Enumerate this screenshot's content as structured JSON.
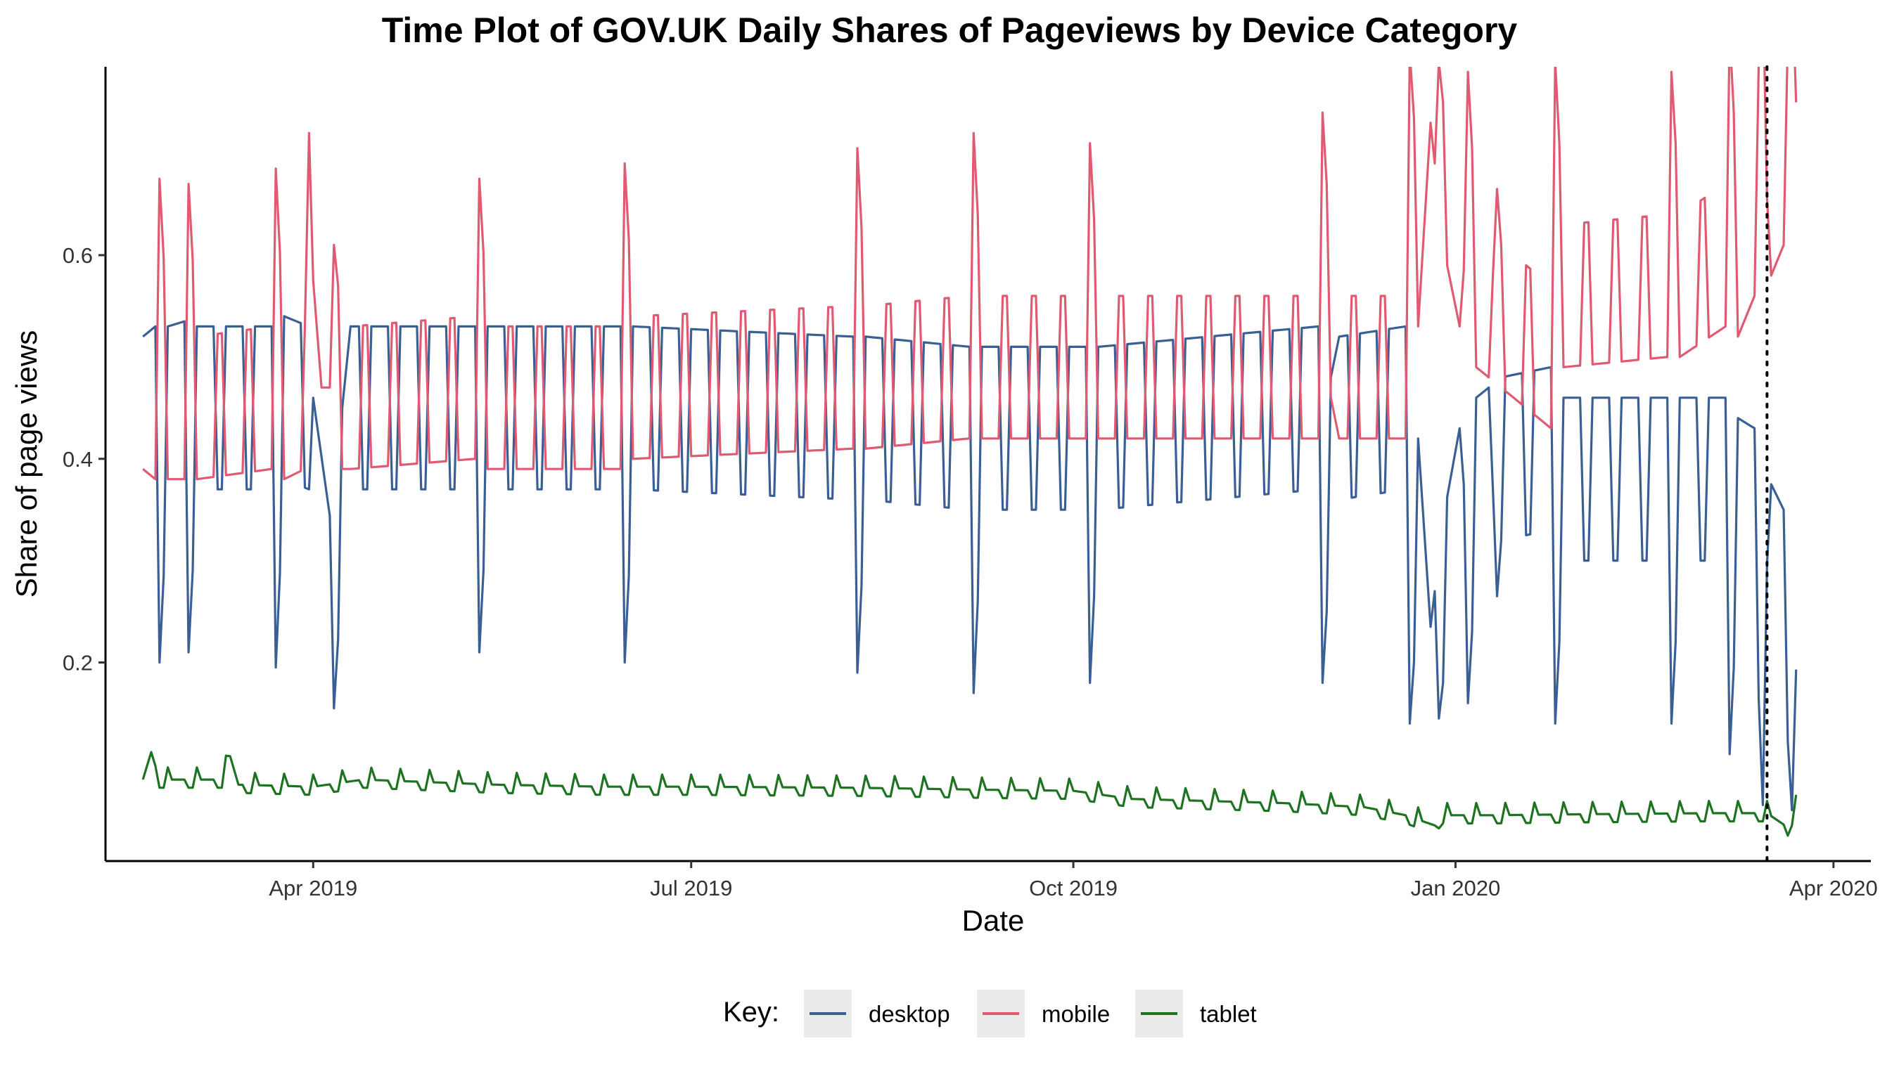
{
  "chart_data": {
    "type": "line",
    "title": "Time Plot of GOV.UK Daily Shares of Pageviews by Device Category",
    "xlabel": "Date",
    "ylabel": "Share of page views",
    "x_ticks": [
      {
        "date": "2019-04-01",
        "label": "Apr 2019"
      },
      {
        "date": "2019-07-01",
        "label": "Jul 2019"
      },
      {
        "date": "2019-10-01",
        "label": "Oct 2019"
      },
      {
        "date": "2020-01-01",
        "label": "Jan 2020"
      },
      {
        "date": "2020-04-01",
        "label": "Apr 2020"
      }
    ],
    "y_ticks": [
      0.2,
      0.4,
      0.6
    ],
    "xlim": [
      "2019-02-10",
      "2020-04-10"
    ],
    "ylim": [
      0.005,
      0.785
    ],
    "x_start": "2019-02-19",
    "x_end": "2020-03-23",
    "vline": {
      "date": "2020-03-16",
      "style": "dotted"
    },
    "grid": false,
    "legend": {
      "title": "Key:",
      "position": "bottom"
    },
    "series": [
      {
        "name": "desktop",
        "color": "#3A5F94",
        "keypoints": [
          [
            "2019-02-19",
            0.52
          ],
          [
            "2019-02-22",
            0.53
          ],
          [
            "2019-02-23",
            0.36
          ],
          [
            "2019-02-25",
            0.53
          ],
          [
            "2019-03-01",
            0.535
          ],
          [
            "2019-03-02",
            0.37
          ],
          [
            "2019-03-04",
            0.53
          ],
          [
            "2019-03-22",
            0.53
          ],
          [
            "2019-03-23",
            0.355
          ],
          [
            "2019-03-25",
            0.54
          ],
          [
            "2019-03-31",
            0.53
          ],
          [
            "2019-04-01",
            0.46
          ],
          [
            "2019-04-06",
            0.315
          ],
          [
            "2019-04-08",
            0.45
          ],
          [
            "2019-04-10",
            0.53
          ],
          [
            "2019-05-10",
            0.53
          ],
          [
            "2019-05-11",
            0.37
          ],
          [
            "2019-05-13",
            0.53
          ],
          [
            "2019-06-14",
            0.53
          ],
          [
            "2019-06-15",
            0.36
          ],
          [
            "2019-06-17",
            0.53
          ],
          [
            "2019-08-09",
            0.52
          ],
          [
            "2019-08-10",
            0.35
          ],
          [
            "2019-08-12",
            0.52
          ],
          [
            "2019-09-06",
            0.51
          ],
          [
            "2019-09-07",
            0.33
          ],
          [
            "2019-09-09",
            0.51
          ],
          [
            "2019-10-04",
            0.51
          ],
          [
            "2019-10-05",
            0.34
          ],
          [
            "2019-10-07",
            0.51
          ],
          [
            "2019-11-29",
            0.53
          ],
          [
            "2019-11-30",
            0.34
          ],
          [
            "2019-12-02",
            0.48
          ],
          [
            "2019-12-04",
            0.52
          ],
          [
            "2019-12-20",
            0.53
          ],
          [
            "2019-12-21",
            0.3
          ],
          [
            "2019-12-23",
            0.42
          ],
          [
            "2019-12-26",
            0.235
          ],
          [
            "2019-12-29",
            0.34
          ],
          [
            "2020-01-02",
            0.43
          ],
          [
            "2020-01-04",
            0.32
          ],
          [
            "2020-01-06",
            0.46
          ],
          [
            "2020-01-09",
            0.47
          ],
          [
            "2020-01-10",
            0.37
          ],
          [
            "2020-01-12",
            0.48
          ],
          [
            "2020-01-24",
            0.49
          ],
          [
            "2020-01-25",
            0.3
          ],
          [
            "2020-01-27",
            0.46
          ],
          [
            "2020-02-21",
            0.46
          ],
          [
            "2020-02-22",
            0.3
          ],
          [
            "2020-02-24",
            0.46
          ],
          [
            "2020-03-06",
            0.46
          ],
          [
            "2020-03-07",
            0.27
          ],
          [
            "2020-03-09",
            0.44
          ],
          [
            "2020-03-13",
            0.43
          ],
          [
            "2020-03-15",
            0.22
          ],
          [
            "2020-03-17",
            0.375
          ],
          [
            "2020-03-20",
            0.35
          ],
          [
            "2020-03-22",
            0.215
          ],
          [
            "2020-03-23",
            0.193
          ]
        ]
      },
      {
        "name": "mobile",
        "color": "#E05A72",
        "keypoints": [
          [
            "2019-02-19",
            0.39
          ],
          [
            "2019-02-22",
            0.38
          ],
          [
            "2019-02-23",
            0.535
          ],
          [
            "2019-02-25",
            0.38
          ],
          [
            "2019-03-01",
            0.38
          ],
          [
            "2019-03-02",
            0.53
          ],
          [
            "2019-03-04",
            0.38
          ],
          [
            "2019-03-22",
            0.39
          ],
          [
            "2019-03-23",
            0.545
          ],
          [
            "2019-03-25",
            0.38
          ],
          [
            "2019-03-30",
            0.39
          ],
          [
            "2019-03-31",
            0.58
          ],
          [
            "2019-04-01",
            0.575
          ],
          [
            "2019-04-03",
            0.47
          ],
          [
            "2019-04-06",
            0.47
          ],
          [
            "2019-04-08",
            0.39
          ],
          [
            "2019-04-10",
            0.39
          ],
          [
            "2019-05-10",
            0.4
          ],
          [
            "2019-05-11",
            0.535
          ],
          [
            "2019-05-13",
            0.39
          ],
          [
            "2019-06-14",
            0.39
          ],
          [
            "2019-06-15",
            0.55
          ],
          [
            "2019-06-17",
            0.4
          ],
          [
            "2019-08-09",
            0.41
          ],
          [
            "2019-08-10",
            0.565
          ],
          [
            "2019-08-12",
            0.41
          ],
          [
            "2019-09-06",
            0.42
          ],
          [
            "2019-09-07",
            0.58
          ],
          [
            "2019-09-09",
            0.42
          ],
          [
            "2019-10-04",
            0.42
          ],
          [
            "2019-10-05",
            0.57
          ],
          [
            "2019-10-07",
            0.42
          ],
          [
            "2019-11-29",
            0.42
          ],
          [
            "2019-11-30",
            0.6
          ],
          [
            "2019-12-02",
            0.46
          ],
          [
            "2019-12-04",
            0.42
          ],
          [
            "2019-12-20",
            0.42
          ],
          [
            "2019-12-21",
            0.66
          ],
          [
            "2019-12-23",
            0.53
          ],
          [
            "2019-12-26",
            0.73
          ],
          [
            "2019-12-29",
            0.61
          ],
          [
            "2020-01-02",
            0.53
          ],
          [
            "2020-01-04",
            0.64
          ],
          [
            "2020-01-06",
            0.49
          ],
          [
            "2020-01-09",
            0.48
          ],
          [
            "2020-01-10",
            0.58
          ],
          [
            "2020-01-12",
            0.47
          ],
          [
            "2020-01-24",
            0.43
          ],
          [
            "2020-01-25",
            0.65
          ],
          [
            "2020-01-27",
            0.49
          ],
          [
            "2020-02-21",
            0.5
          ],
          [
            "2020-02-22",
            0.64
          ],
          [
            "2020-02-24",
            0.5
          ],
          [
            "2020-03-06",
            0.53
          ],
          [
            "2020-03-07",
            0.68
          ],
          [
            "2020-03-09",
            0.52
          ],
          [
            "2020-03-13",
            0.56
          ],
          [
            "2020-03-15",
            0.73
          ],
          [
            "2020-03-17",
            0.58
          ],
          [
            "2020-03-20",
            0.61
          ],
          [
            "2020-03-22",
            0.74
          ],
          [
            "2020-03-23",
            0.75
          ]
        ]
      },
      {
        "name": "tablet",
        "color": "#1E7321",
        "keypoints": [
          [
            "2019-02-19",
            0.085
          ],
          [
            "2019-02-21",
            0.112
          ],
          [
            "2019-02-23",
            0.085
          ],
          [
            "2019-03-10",
            0.085
          ],
          [
            "2019-03-12",
            0.108
          ],
          [
            "2019-03-14",
            0.08
          ],
          [
            "2019-04-01",
            0.078
          ],
          [
            "2019-04-13",
            0.085
          ],
          [
            "2019-05-15",
            0.08
          ],
          [
            "2019-06-10",
            0.078
          ],
          [
            "2019-07-01",
            0.078
          ],
          [
            "2019-08-10",
            0.077
          ],
          [
            "2019-09-10",
            0.075
          ],
          [
            "2019-10-01",
            0.074
          ],
          [
            "2019-10-15",
            0.066
          ],
          [
            "2019-11-20",
            0.062
          ],
          [
            "2019-12-10",
            0.058
          ],
          [
            "2019-12-20",
            0.05
          ],
          [
            "2019-12-27",
            0.04
          ],
          [
            "2019-12-29",
            0.05
          ],
          [
            "2020-01-10",
            0.05
          ],
          [
            "2020-02-01",
            0.051
          ],
          [
            "2020-03-01",
            0.052
          ],
          [
            "2020-03-16",
            0.052
          ],
          [
            "2020-03-21",
            0.038
          ],
          [
            "2020-03-23",
            0.058
          ]
        ]
      }
    ]
  }
}
